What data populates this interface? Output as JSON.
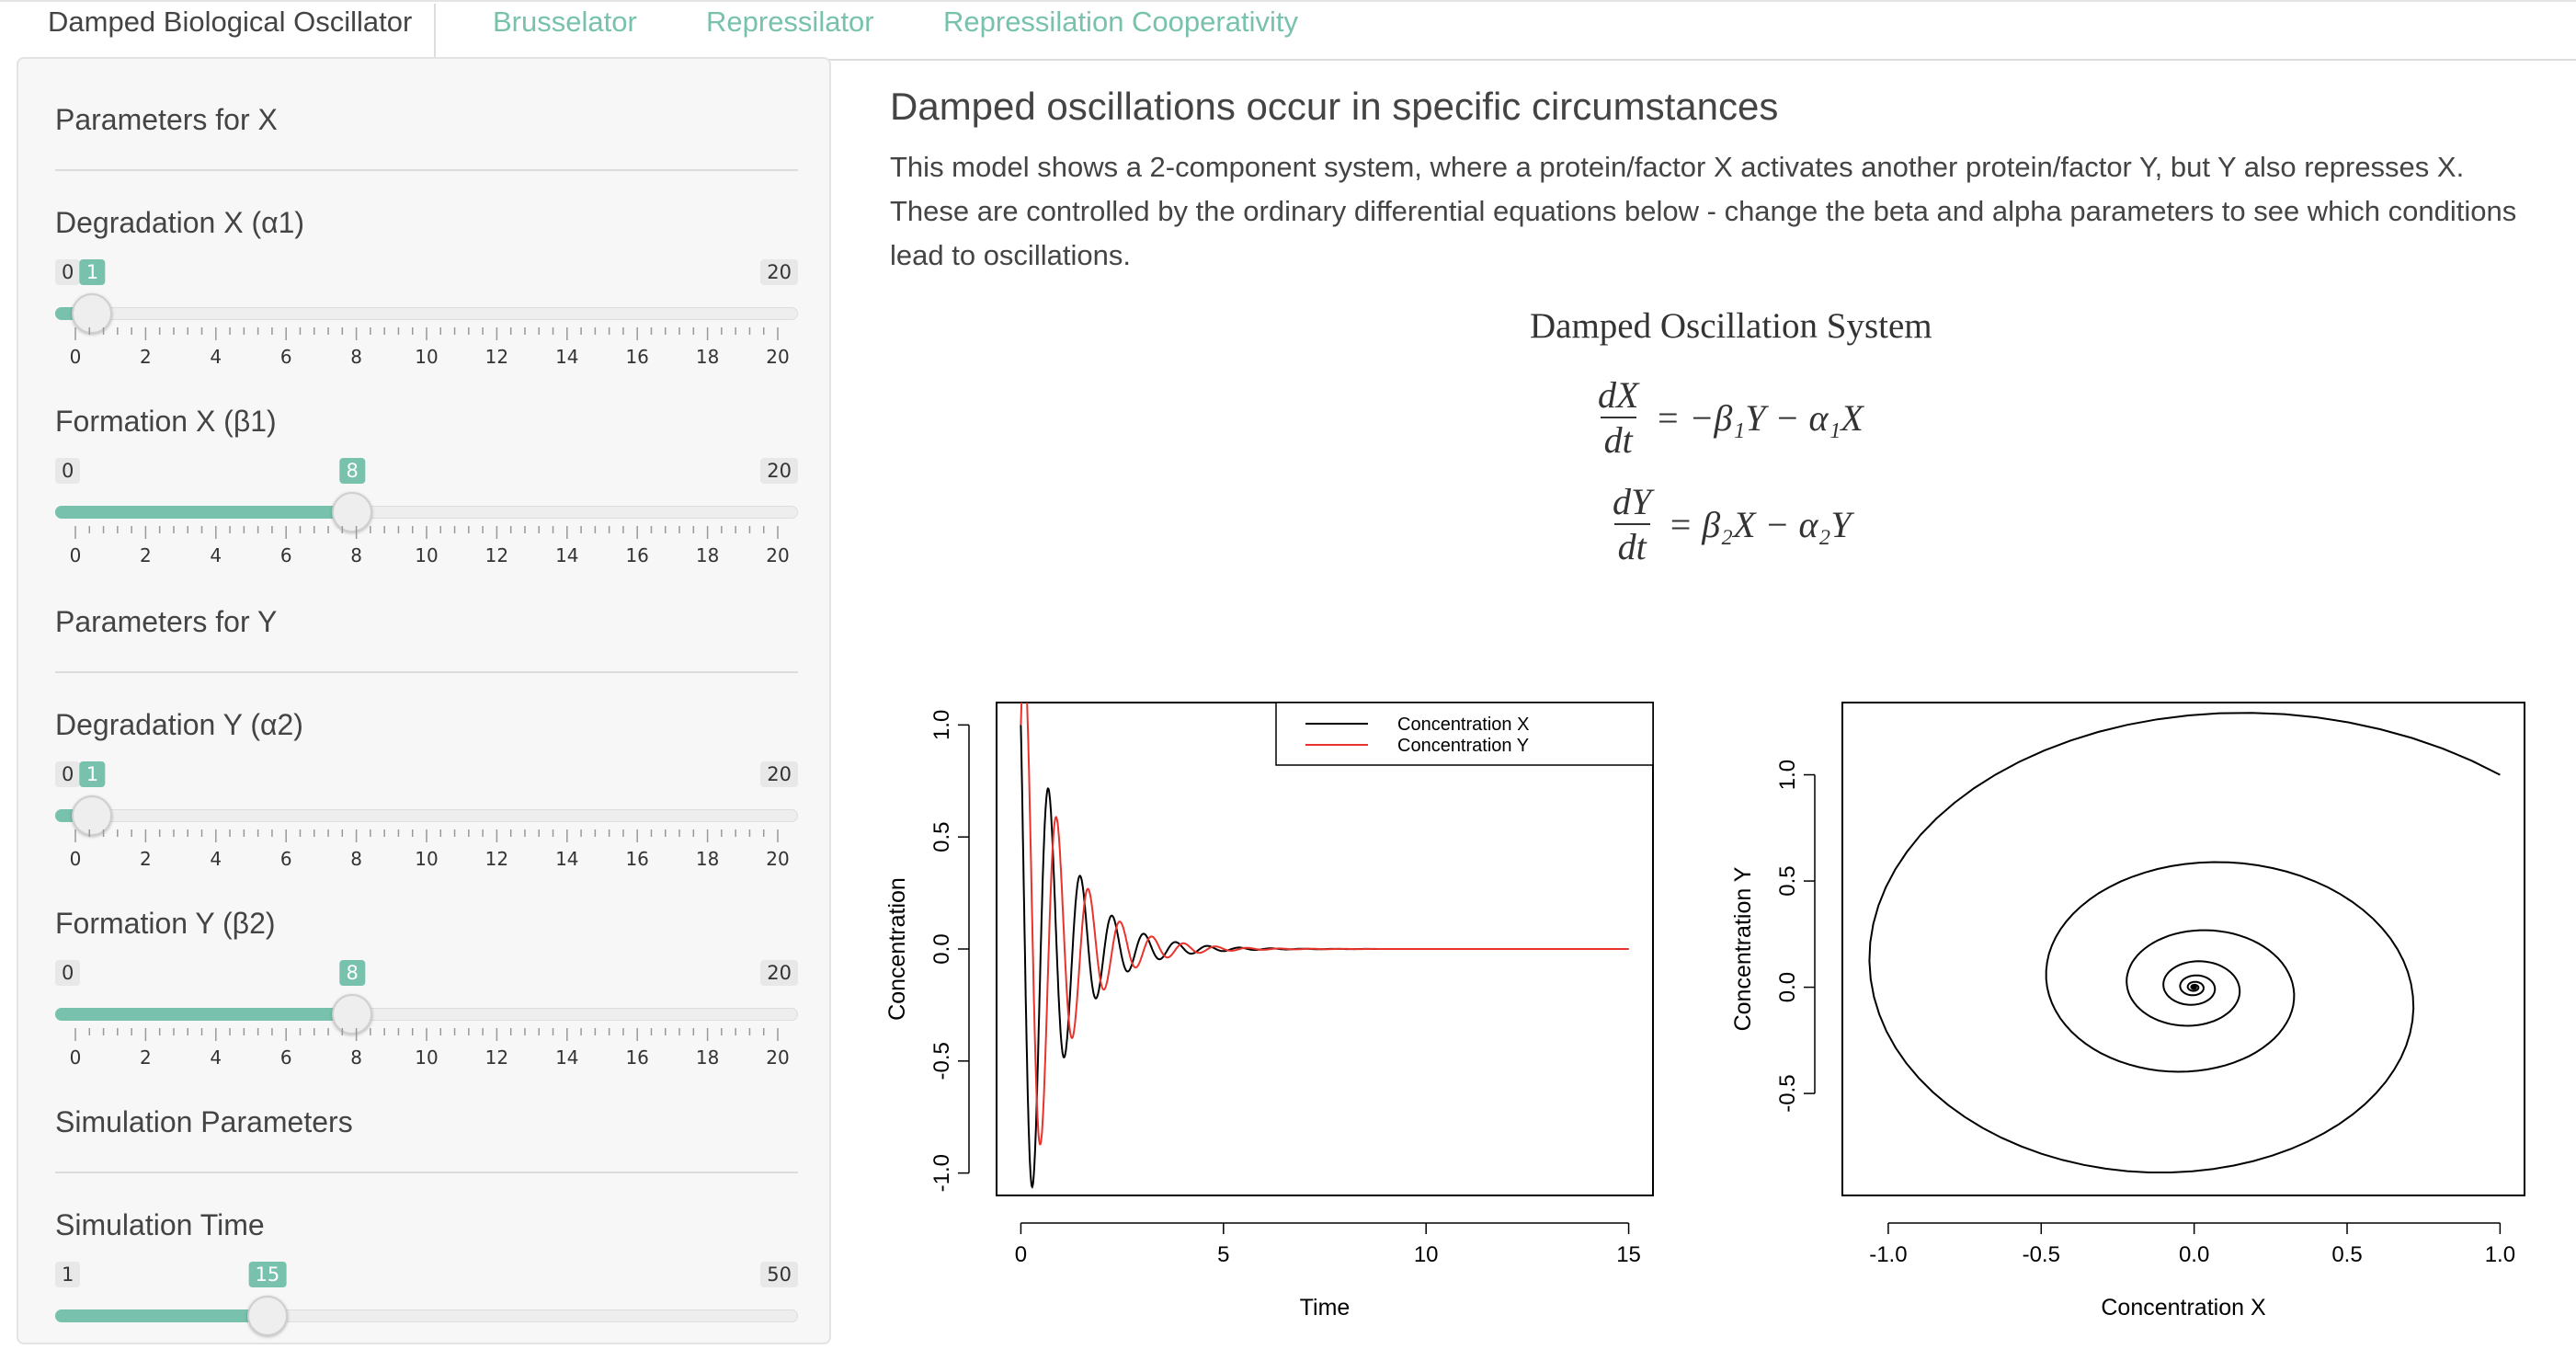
{
  "tabs": [
    {
      "label": "Damped Biological Oscillator"
    },
    {
      "label": "Brusselator"
    },
    {
      "label": "Repressilator"
    },
    {
      "label": "Repressilation Cooperativity"
    }
  ],
  "sidebar": {
    "section_x": "Parameters for X",
    "section_y": "Parameters for Y",
    "section_sim": "Simulation Parameters",
    "sliders": [
      {
        "label": "Degradation X (α1)",
        "min": "0",
        "max": "20",
        "value": "1",
        "fraction": 0.05,
        "ticks": [
          "0",
          "2",
          "4",
          "6",
          "8",
          "10",
          "12",
          "14",
          "16",
          "18",
          "20"
        ]
      },
      {
        "label": "Formation X (β1)",
        "min": "0",
        "max": "20",
        "value": "8",
        "fraction": 0.4,
        "ticks": [
          "0",
          "2",
          "4",
          "6",
          "8",
          "10",
          "12",
          "14",
          "16",
          "18",
          "20"
        ]
      },
      {
        "label": "Degradation Y (α2)",
        "min": "0",
        "max": "20",
        "value": "1",
        "fraction": 0.05,
        "ticks": [
          "0",
          "2",
          "4",
          "6",
          "8",
          "10",
          "12",
          "14",
          "16",
          "18",
          "20"
        ]
      },
      {
        "label": "Formation Y (β2)",
        "min": "0",
        "max": "20",
        "value": "8",
        "fraction": 0.4,
        "ticks": [
          "0",
          "2",
          "4",
          "6",
          "8",
          "10",
          "12",
          "14",
          "16",
          "18",
          "20"
        ]
      },
      {
        "label": "Simulation Time",
        "min": "1",
        "max": "50",
        "value": "15",
        "fraction": 0.2857,
        "ticks": []
      }
    ]
  },
  "main": {
    "title": "Damped oscillations occur in specific circumstances",
    "description": "This model shows a 2-component system, where a protein/factor X activates another protein/factor Y, but Y also represses X. These are controlled by the ordinary differential equations below - change the beta and alpha parameters to see which conditions lead to oscillations.",
    "equation_title": "Damped Oscillation System",
    "equations": [
      {
        "num": "dX",
        "den": "dt",
        "rhs": "= −β₁Y − α₁X"
      },
      {
        "num": "dY",
        "den": "dt",
        "rhs": "= β₂X − α₂Y"
      }
    ]
  },
  "colors": {
    "accent": "#78c2ad",
    "series_x": "#000000",
    "series_y": "#e8342c"
  },
  "chart_data": [
    {
      "type": "line",
      "xlabel": "Time",
      "ylabel": "Concentration",
      "xlim": [
        0,
        15
      ],
      "ylim": [
        -1.0,
        1.0
      ],
      "xticks": [
        "0",
        "5",
        "10",
        "15"
      ],
      "yticks": [
        "-1.0",
        "-0.5",
        "0.0",
        "0.5",
        "1.0"
      ],
      "legend_position": "top-right",
      "series": [
        {
          "name": "Concentration X",
          "model": "damped",
          "alpha1": 1,
          "beta1": 8,
          "alpha2": 1,
          "beta2": 8,
          "x0": 1,
          "y0": 1,
          "component": "x"
        },
        {
          "name": "Concentration Y",
          "model": "damped",
          "alpha1": 1,
          "beta1": 8,
          "alpha2": 1,
          "beta2": 8,
          "x0": 1,
          "y0": 1,
          "component": "y"
        }
      ],
      "t_end": 15
    },
    {
      "type": "line",
      "xlabel": "Concentration X",
      "ylabel": "Concentration Y",
      "xlim": [
        -1.0,
        1.0
      ],
      "ylim": [
        -0.5,
        1.0
      ],
      "xticks": [
        "-1.0",
        "-0.5",
        "0.0",
        "0.5",
        "1.0"
      ],
      "yticks": [
        "-0.5",
        "0.0",
        "0.5",
        "1.0"
      ],
      "series": [
        {
          "name": "",
          "model": "phase",
          "alpha1": 1,
          "beta1": 8,
          "alpha2": 1,
          "beta2": 8,
          "x0": 1,
          "y0": 1
        }
      ],
      "t_end": 15
    }
  ]
}
